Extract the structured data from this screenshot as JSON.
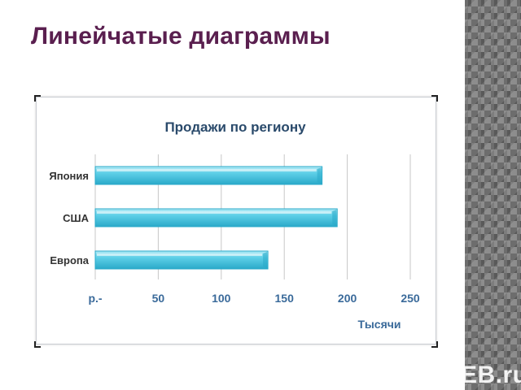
{
  "slide": {
    "title": "Линейчатые диаграммы",
    "watermark": "EB.ru"
  },
  "colors": {
    "title": "#5a1f4f",
    "chart_title": "#2a4a6b",
    "bar_main": "#5fd0e8",
    "bar_light": "#b6ecf7",
    "bar_dark": "#2aa9c9",
    "gridline": "#c7c7c7",
    "label": "#333333",
    "unit": "#3a6a9a"
  },
  "chart_data": {
    "type": "bar",
    "orientation": "horizontal",
    "title": "Продажи по региону",
    "categories": [
      "Япония",
      "США",
      "Европа"
    ],
    "values": [
      180,
      192,
      137
    ],
    "xlim": [
      0,
      250
    ],
    "xticks": [
      0,
      50,
      100,
      150,
      200,
      250
    ],
    "xtick_labels": [
      "р.-",
      "50",
      "100",
      "150",
      "200",
      "250"
    ],
    "xlabel": "Тысячи",
    "grid": true,
    "legend": "none"
  }
}
